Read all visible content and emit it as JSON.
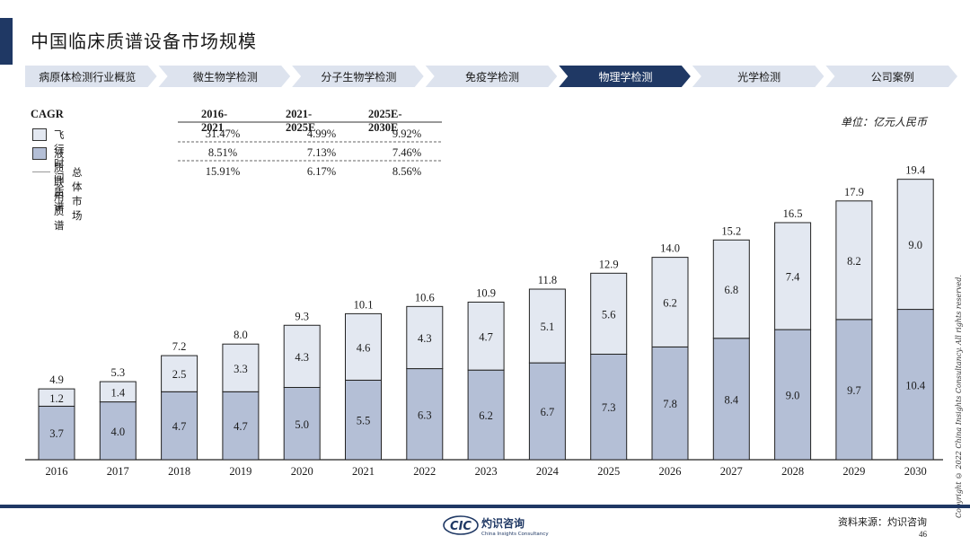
{
  "title": "中国临床质谱设备市场规模",
  "nav": {
    "items": [
      "病原体检测行业概览",
      "微生物学检测",
      "分子生物学检测",
      "免疫学检测",
      "物理学检测",
      "光学检测",
      "公司案例"
    ],
    "active_index": 4,
    "active_color": "#1f3864",
    "inactive_color": "#dde3ee"
  },
  "cagr": {
    "header": "CAGR",
    "columns": [
      "2016-2021",
      "2021-2025E",
      "2025E-2030E"
    ],
    "rows": [
      {
        "label": "飞行时间质谱",
        "values": [
          "31.47%",
          "4.99%",
          "9.92%"
        ]
      },
      {
        "label": "液质联用质谱",
        "values": [
          "8.51%",
          "7.13%",
          "7.46%"
        ]
      },
      {
        "label": "总体市场",
        "values": [
          "15.91%",
          "6.17%",
          "8.56%"
        ]
      }
    ]
  },
  "unit": "单位：亿元人民币",
  "chart_data": {
    "type": "bar",
    "stacked": true,
    "categories": [
      "2016",
      "2017",
      "2018",
      "2019",
      "2020",
      "2021",
      "2022",
      "2023",
      "2024",
      "2025",
      "2026",
      "2027",
      "2028",
      "2029",
      "2030"
    ],
    "series": [
      {
        "name": "液质联用质谱",
        "color": "#b4bfd6",
        "values": [
          3.7,
          4.0,
          4.7,
          4.7,
          5.0,
          5.5,
          6.3,
          6.2,
          6.7,
          7.3,
          7.8,
          8.4,
          9.0,
          9.7,
          10.4
        ]
      },
      {
        "name": "飞行时间质谱",
        "color": "#e3e8f1",
        "values": [
          1.2,
          1.4,
          2.5,
          3.3,
          4.3,
          4.6,
          4.3,
          4.7,
          5.1,
          5.6,
          6.2,
          6.8,
          7.4,
          8.2,
          9.0
        ]
      }
    ],
    "totals": [
      4.9,
      5.3,
      7.2,
      8.0,
      9.3,
      10.1,
      10.6,
      10.9,
      11.8,
      12.9,
      14.0,
      15.2,
      16.5,
      17.9,
      19.4
    ],
    "ylim": [
      0,
      20
    ]
  },
  "copyright": "Copyright © 2022 China Insights Consultancy. All rights reserved.",
  "footer": {
    "logo_text": "CIC",
    "logo_cn": "灼识咨询",
    "logo_en": "China Insights Consultancy",
    "source": "资料来源：灼识咨询",
    "page": "46"
  }
}
